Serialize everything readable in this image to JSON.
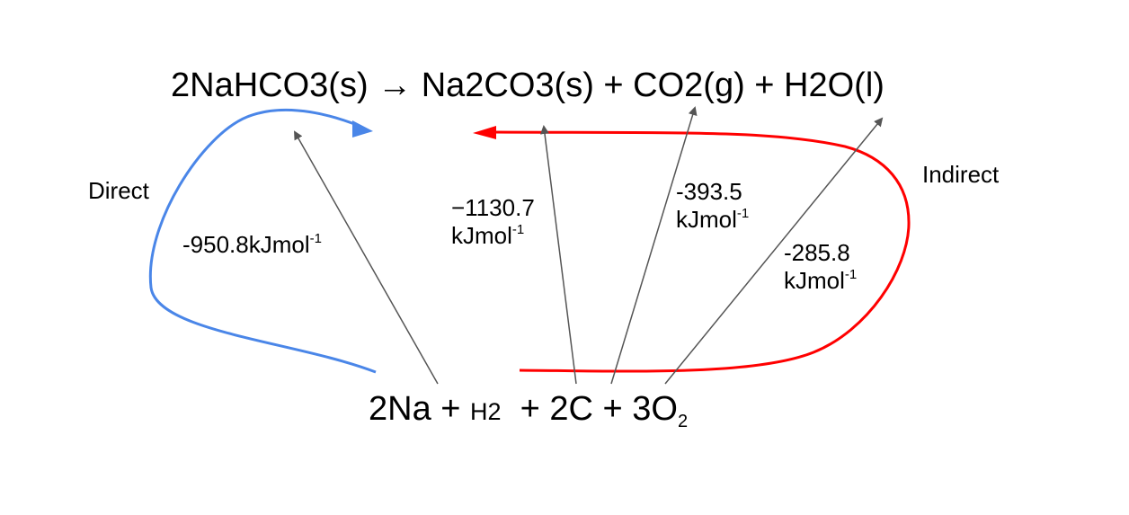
{
  "reaction": {
    "top_equation": "2NaHCO3(s) → Na2CO3(s) + CO2(g) + H2O(l)",
    "bottom": {
      "part_2na": "2Na + ",
      "part_h2": "H2",
      "part_2c": "  + 2C + 3O",
      "subscript_2": "2"
    }
  },
  "routes": {
    "direct_label": "Direct",
    "indirect_label": "Indirect",
    "direct_color": "#4a86e8",
    "indirect_color": "#ff0000",
    "arrow_color": "#555555"
  },
  "enthalpies": {
    "nahco3": {
      "value": "-950.8kJmol",
      "exp": "-1"
    },
    "na2co3": {
      "value": "−1130.7",
      "unit": "kJmol",
      "exp": "-1"
    },
    "co2": {
      "value": "-393.5",
      "unit": "kJmol",
      "exp": "-1"
    },
    "h2o": {
      "value": "-285.8",
      "unit": "kJmol",
      "exp": "-1"
    }
  }
}
